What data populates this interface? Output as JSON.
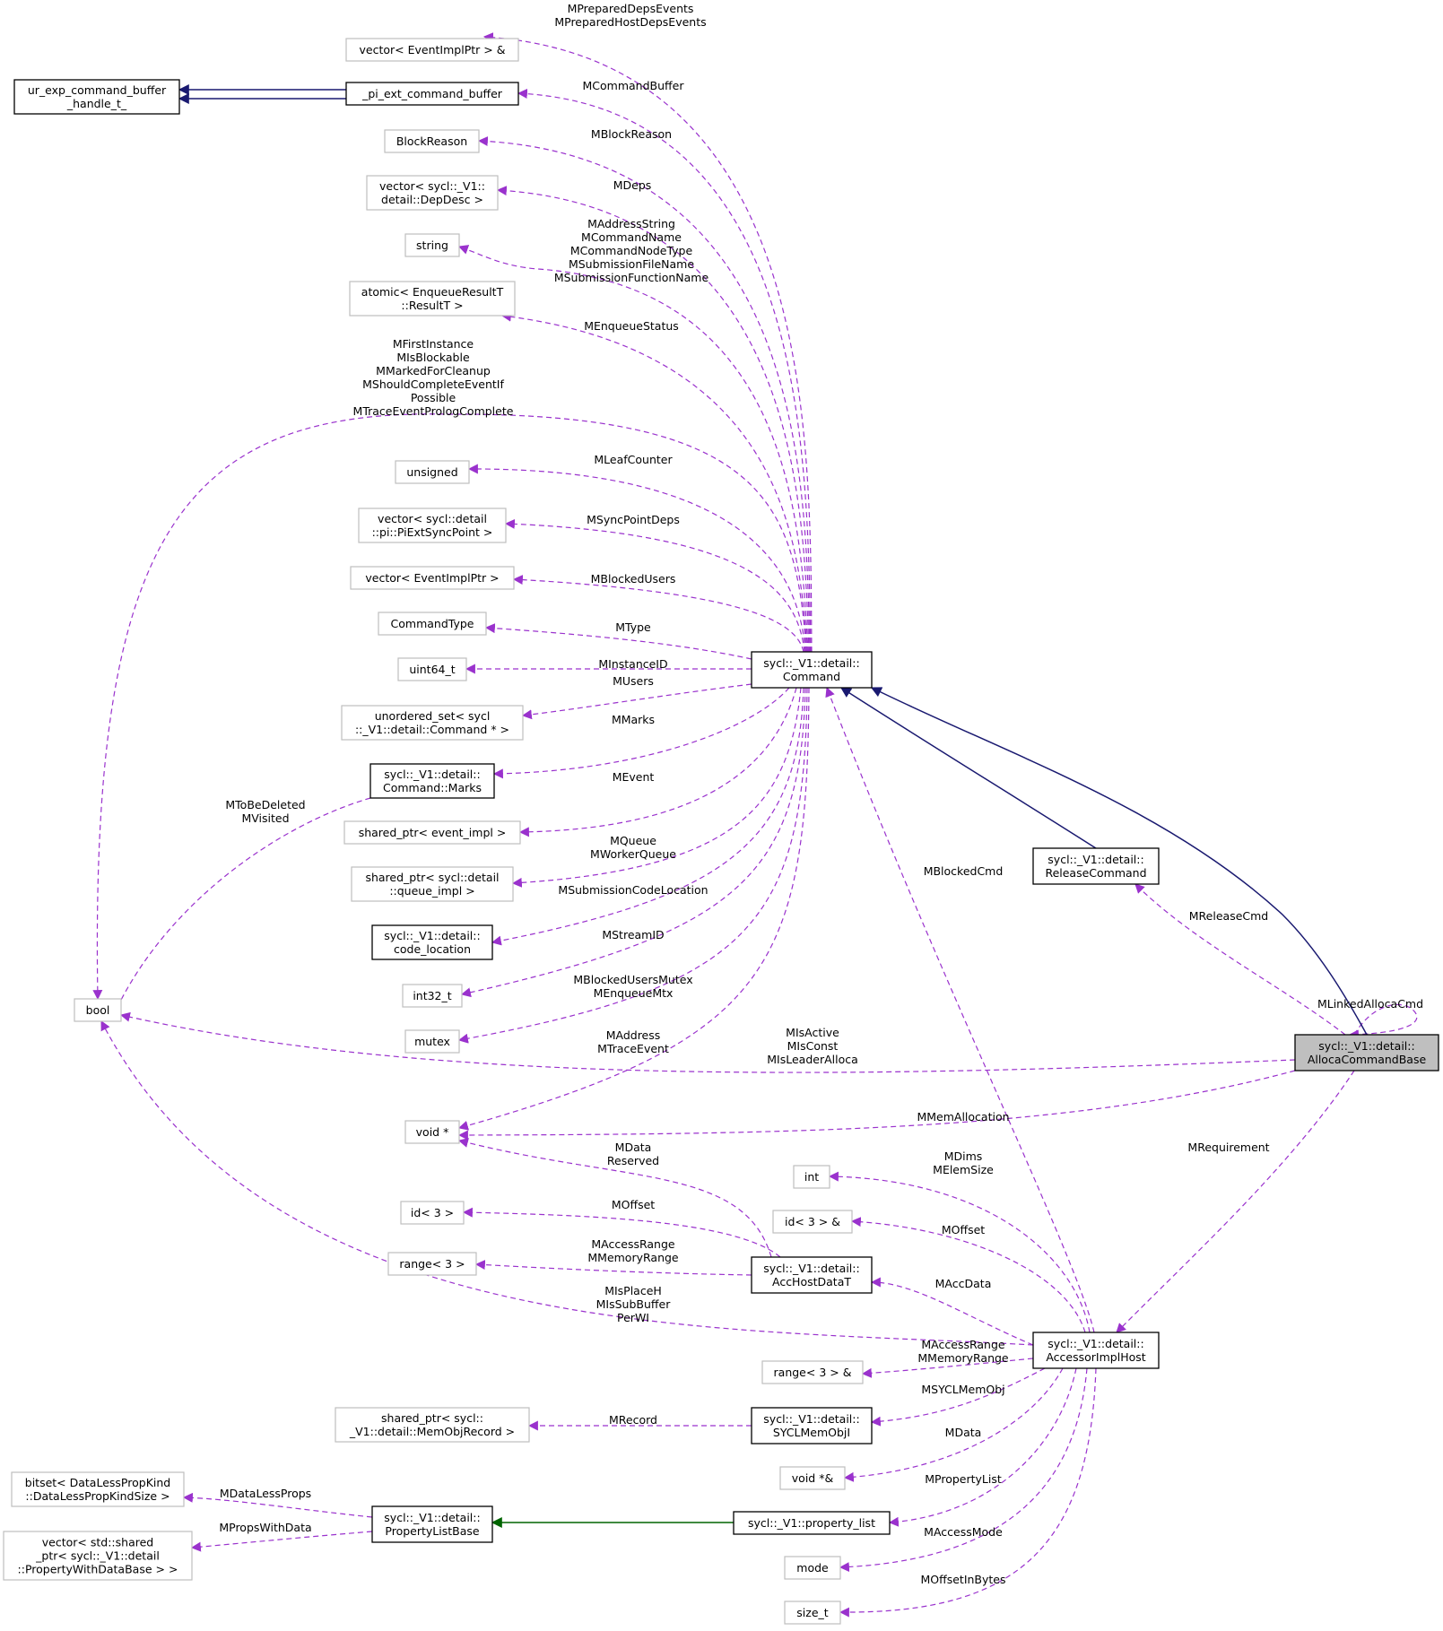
{
  "diagram": {
    "type": "collaboration-graph",
    "focus": "allocacmd",
    "nodes": [
      {
        "id": "evptrref",
        "lines": [
          "vector< EventImplPtr > &"
        ],
        "style": "grey"
      },
      {
        "id": "urcmdbuf",
        "lines": [
          "ur_exp_command_buffer",
          "_handle_t_"
        ],
        "style": "black"
      },
      {
        "id": "picmdbuf",
        "lines": [
          "_pi_ext_command_buffer"
        ],
        "style": "black"
      },
      {
        "id": "blockreason",
        "lines": [
          "BlockReason"
        ],
        "style": "grey"
      },
      {
        "id": "depdesc",
        "lines": [
          "vector< sycl::_V1::",
          "detail::DepDesc >"
        ],
        "style": "grey"
      },
      {
        "id": "string",
        "lines": [
          "string"
        ],
        "style": "grey"
      },
      {
        "id": "atomic",
        "lines": [
          "atomic< EnqueueResultT",
          "::ResultT >"
        ],
        "style": "grey"
      },
      {
        "id": "unsigned",
        "lines": [
          "unsigned"
        ],
        "style": "grey"
      },
      {
        "id": "syncpoint",
        "lines": [
          "vector< sycl::detail",
          "::pi::PiExtSyncPoint >"
        ],
        "style": "grey"
      },
      {
        "id": "evptrvec",
        "lines": [
          "vector< EventImplPtr >"
        ],
        "style": "grey"
      },
      {
        "id": "cmdtype",
        "lines": [
          "CommandType"
        ],
        "style": "grey"
      },
      {
        "id": "uint64",
        "lines": [
          "uint64_t"
        ],
        "style": "grey"
      },
      {
        "id": "command",
        "lines": [
          "sycl::_V1::detail::",
          "Command"
        ],
        "style": "black"
      },
      {
        "id": "uset",
        "lines": [
          "unordered_set< sycl",
          "::_V1::detail::Command * >"
        ],
        "style": "grey"
      },
      {
        "id": "marks",
        "lines": [
          "sycl::_V1::detail::",
          "Command::Marks"
        ],
        "style": "black"
      },
      {
        "id": "spevent",
        "lines": [
          "shared_ptr< event_impl >"
        ],
        "style": "grey"
      },
      {
        "id": "spqueue",
        "lines": [
          "shared_ptr< sycl::detail",
          "::queue_impl >"
        ],
        "style": "grey"
      },
      {
        "id": "codeloc",
        "lines": [
          "sycl::_V1::detail::",
          "code_location"
        ],
        "style": "black"
      },
      {
        "id": "int32",
        "lines": [
          "int32_t"
        ],
        "style": "grey"
      },
      {
        "id": "mutex",
        "lines": [
          "mutex"
        ],
        "style": "grey"
      },
      {
        "id": "bool",
        "lines": [
          "bool"
        ],
        "style": "grey"
      },
      {
        "id": "release",
        "lines": [
          "sycl::_V1::detail::",
          "ReleaseCommand"
        ],
        "style": "black"
      },
      {
        "id": "allocacmd",
        "lines": [
          "sycl::_V1::detail::",
          "AllocaCommandBase"
        ],
        "style": "focus"
      },
      {
        "id": "voidp",
        "lines": [
          "void *"
        ],
        "style": "grey"
      },
      {
        "id": "int",
        "lines": [
          "int"
        ],
        "style": "grey"
      },
      {
        "id": "id3ref",
        "lines": [
          "id< 3 > &"
        ],
        "style": "grey"
      },
      {
        "id": "id3",
        "lines": [
          "id< 3 >"
        ],
        "style": "grey"
      },
      {
        "id": "range3",
        "lines": [
          "range< 3 >"
        ],
        "style": "grey"
      },
      {
        "id": "acchost",
        "lines": [
          "sycl::_V1::detail::",
          "AccHostDataT"
        ],
        "style": "black"
      },
      {
        "id": "accimpl",
        "lines": [
          "sycl::_V1::detail::",
          "AccessorImplHost"
        ],
        "style": "black"
      },
      {
        "id": "range3ref",
        "lines": [
          "range< 3 > &"
        ],
        "style": "grey"
      },
      {
        "id": "spmemrec",
        "lines": [
          "shared_ptr< sycl::",
          "_V1::detail::MemObjRecord >"
        ],
        "style": "grey"
      },
      {
        "id": "syclmem",
        "lines": [
          "sycl::_V1::detail::",
          "SYCLMemObjI"
        ],
        "style": "black"
      },
      {
        "id": "voidpref",
        "lines": [
          "void *&"
        ],
        "style": "grey"
      },
      {
        "id": "bitset",
        "lines": [
          "bitset< DataLessPropKind",
          "::DataLessPropKindSize >"
        ],
        "style": "grey"
      },
      {
        "id": "plbase",
        "lines": [
          "sycl::_V1::detail::",
          "PropertyListBase"
        ],
        "style": "black"
      },
      {
        "id": "proplist",
        "lines": [
          "sycl::_V1::property_list"
        ],
        "style": "black"
      },
      {
        "id": "vecprops",
        "lines": [
          "vector< std::shared",
          "_ptr< sycl::_V1::detail",
          "::PropertyWithDataBase > >"
        ],
        "style": "grey"
      },
      {
        "id": "mode",
        "lines": [
          "mode"
        ],
        "style": "grey"
      },
      {
        "id": "sizet",
        "lines": [
          "size_t"
        ],
        "style": "grey"
      }
    ],
    "edges": [
      {
        "id": "e-prepdeps",
        "from": "command",
        "to": "evptrref",
        "kind": "member",
        "label": [
          "MPreparedDepsEvents",
          "MPreparedHostDepsEvents"
        ]
      },
      {
        "id": "e-cmdbuf",
        "from": "command",
        "to": "picmdbuf",
        "kind": "member",
        "label": [
          "MCommandBuffer"
        ]
      },
      {
        "id": "e-blockreason",
        "from": "command",
        "to": "blockreason",
        "kind": "member",
        "label": [
          "MBlockReason"
        ]
      },
      {
        "id": "e-deps",
        "from": "command",
        "to": "depdesc",
        "kind": "member",
        "label": [
          "MDeps"
        ]
      },
      {
        "id": "e-string",
        "from": "command",
        "to": "string",
        "kind": "member",
        "label": [
          "MAddressString",
          "MCommandName",
          "MCommandNodeType",
          "MSubmissionFileName",
          "MSubmissionFunctionName"
        ]
      },
      {
        "id": "e-enqstatus",
        "from": "command",
        "to": "atomic",
        "kind": "member",
        "label": [
          "MEnqueueStatus"
        ]
      },
      {
        "id": "e-cmdbool",
        "from": "command",
        "to": "bool",
        "kind": "member",
        "label": [
          "MFirstInstance",
          "MIsBlockable",
          "MMarkedForCleanup",
          "MShouldCompleteEventIf",
          "Possible",
          "MTraceEventPrologComplete"
        ]
      },
      {
        "id": "e-leaf",
        "from": "command",
        "to": "unsigned",
        "kind": "member",
        "label": [
          "MLeafCounter"
        ]
      },
      {
        "id": "e-syncdeps",
        "from": "command",
        "to": "syncpoint",
        "kind": "member",
        "label": [
          "MSyncPointDeps"
        ]
      },
      {
        "id": "e-blockedusers",
        "from": "command",
        "to": "evptrvec",
        "kind": "member",
        "label": [
          "MBlockedUsers"
        ]
      },
      {
        "id": "e-type",
        "from": "command",
        "to": "cmdtype",
        "kind": "member",
        "label": [
          "MType"
        ]
      },
      {
        "id": "e-instid",
        "from": "command",
        "to": "uint64",
        "kind": "member",
        "label": [
          "MInstanceID"
        ]
      },
      {
        "id": "e-users",
        "from": "command",
        "to": "uset",
        "kind": "member",
        "label": [
          "MUsers"
        ]
      },
      {
        "id": "e-marks",
        "from": "command",
        "to": "marks",
        "kind": "member",
        "label": [
          "MMarks"
        ]
      },
      {
        "id": "e-event",
        "from": "command",
        "to": "spevent",
        "kind": "member",
        "label": [
          "MEvent"
        ]
      },
      {
        "id": "e-queue",
        "from": "command",
        "to": "spqueue",
        "kind": "member",
        "label": [
          "MQueue",
          "MWorkerQueue"
        ]
      },
      {
        "id": "e-codeloc",
        "from": "command",
        "to": "codeloc",
        "kind": "member",
        "label": [
          "MSubmissionCodeLocation"
        ]
      },
      {
        "id": "e-stream",
        "from": "command",
        "to": "int32",
        "kind": "member",
        "label": [
          "MStreamID"
        ]
      },
      {
        "id": "e-mutex",
        "from": "command",
        "to": "mutex",
        "kind": "member",
        "label": [
          "MBlockedUsersMutex",
          "MEnqueueMtx"
        ]
      },
      {
        "id": "e-cmdvoid",
        "from": "command",
        "to": "voidp",
        "kind": "member",
        "label": [
          "MAddress",
          "MTraceEvent"
        ]
      },
      {
        "id": "e-marksbool",
        "from": "marks",
        "to": "bool",
        "kind": "member",
        "label": [
          "MToBeDeleted",
          "MVisited"
        ]
      },
      {
        "id": "e-blockedcmd",
        "from": "accimpl",
        "to": "command",
        "kind": "member",
        "label": [
          "MBlockedCmd"
        ]
      },
      {
        "id": "e-releasecmd",
        "from": "allocacmd",
        "to": "release",
        "kind": "member",
        "label": [
          "MReleaseCmd"
        ]
      },
      {
        "id": "e-linked",
        "from": "allocacmd",
        "to": "allocacmd",
        "kind": "member",
        "label": [
          "MLinkedAllocaCmd"
        ]
      },
      {
        "id": "e-allocabool",
        "from": "allocacmd",
        "to": "bool",
        "kind": "member",
        "label": [
          "MIsActive",
          "MIsConst",
          "MIsLeaderAlloca"
        ]
      },
      {
        "id": "e-memalloc",
        "from": "allocacmd",
        "to": "voidp",
        "kind": "member",
        "label": [
          "MMemAllocation"
        ]
      },
      {
        "id": "e-requirement",
        "from": "allocacmd",
        "to": "accimpl",
        "kind": "member",
        "label": [
          "MRequirement"
        ]
      },
      {
        "id": "e-acchostvoid",
        "from": "acchost",
        "to": "voidp",
        "kind": "member",
        "label": [
          "MData",
          "Reserved"
        ]
      },
      {
        "id": "e-acchostid",
        "from": "acchost",
        "to": "id3",
        "kind": "member",
        "label": [
          "MOffset"
        ]
      },
      {
        "id": "e-acchostrange",
        "from": "acchost",
        "to": "range3",
        "kind": "member",
        "label": [
          "MAccessRange",
          "MMemoryRange"
        ]
      },
      {
        "id": "e-dims",
        "from": "accimpl",
        "to": "int",
        "kind": "member",
        "label": [
          "MDims",
          "MElemSize"
        ]
      },
      {
        "id": "e-offsetref",
        "from": "accimpl",
        "to": "id3ref",
        "kind": "member",
        "label": [
          "MOffset"
        ]
      },
      {
        "id": "e-accdata",
        "from": "accimpl",
        "to": "acchost",
        "kind": "member",
        "label": [
          "MAccData"
        ]
      },
      {
        "id": "e-implbool",
        "from": "accimpl",
        "to": "bool",
        "kind": "member",
        "label": [
          "MIsPlaceH",
          "MIsSubBuffer",
          "PerWI"
        ]
      },
      {
        "id": "e-rangeref",
        "from": "accimpl",
        "to": "range3ref",
        "kind": "member",
        "label": [
          "MAccessRange",
          "MMemoryRange"
        ]
      },
      {
        "id": "e-syclmem",
        "from": "accimpl",
        "to": "syclmem",
        "kind": "member",
        "label": [
          "MSYCLMemObj"
        ]
      },
      {
        "id": "e-record",
        "from": "syclmem",
        "to": "spmemrec",
        "kind": "member",
        "label": [
          "MRecord"
        ]
      },
      {
        "id": "e-data",
        "from": "accimpl",
        "to": "voidpref",
        "kind": "member",
        "label": [
          "MData"
        ]
      },
      {
        "id": "e-proplist",
        "from": "accimpl",
        "to": "proplist",
        "kind": "member",
        "label": [
          "MPropertyList"
        ]
      },
      {
        "id": "e-accmode",
        "from": "accimpl",
        "to": "mode",
        "kind": "member",
        "label": [
          "MAccessMode"
        ]
      },
      {
        "id": "e-offbytes",
        "from": "accimpl",
        "to": "sizet",
        "kind": "member",
        "label": [
          "MOffsetInBytes"
        ]
      },
      {
        "id": "e-dataless",
        "from": "plbase",
        "to": "bitset",
        "kind": "member",
        "label": [
          "MDataLessProps"
        ]
      },
      {
        "id": "e-propswd",
        "from": "plbase",
        "to": "vecprops",
        "kind": "member",
        "label": [
          "MPropsWithData"
        ]
      },
      {
        "id": "e-inh-pl",
        "from": "proplist",
        "to": "plbase",
        "kind": "inherit-private",
        "label": []
      },
      {
        "id": "e-inh-cb1",
        "from": "picmdbuf",
        "to": "urcmdbuf",
        "kind": "inherit",
        "label": []
      },
      {
        "id": "e-inh-cb2",
        "from": "picmdbuf",
        "to": "urcmdbuf",
        "kind": "inherit",
        "label": []
      },
      {
        "id": "e-inh-rel",
        "from": "release",
        "to": "command",
        "kind": "inherit",
        "label": []
      },
      {
        "id": "e-inh-alloca",
        "from": "allocacmd",
        "to": "command",
        "kind": "inherit",
        "label": []
      }
    ]
  }
}
